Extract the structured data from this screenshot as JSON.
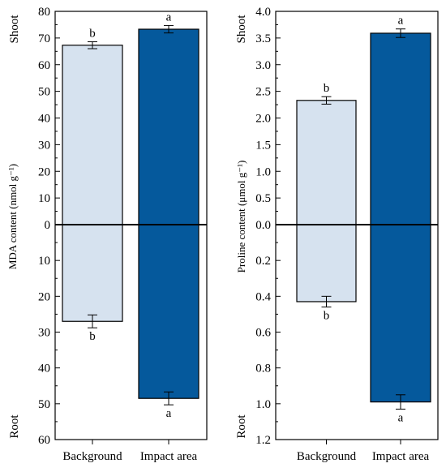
{
  "chart_data": [
    {
      "type": "bar",
      "ylabel": "MDA content (nmol g⁻¹)",
      "side_labels": {
        "top": "Shoot",
        "bottom": "Root"
      },
      "categories": [
        "Background",
        "Impact area"
      ],
      "colors": [
        "#d6e2ef",
        "#05599c"
      ],
      "ylim_shoot": [
        0,
        80
      ],
      "ylim_root": [
        0,
        60
      ],
      "yticks_shoot": [
        "0",
        "10",
        "20",
        "30",
        "40",
        "50",
        "60",
        "70",
        "80"
      ],
      "yticks_root": [
        "10",
        "20",
        "30",
        "40",
        "50",
        "60"
      ],
      "series": [
        {
          "part": "shoot",
          "values": [
            67.3,
            73.3
          ],
          "errors": [
            1.3,
            1.4
          ],
          "letters": [
            "b",
            "a"
          ]
        },
        {
          "part": "root",
          "values": [
            27.0,
            48.5
          ],
          "errors": [
            1.8,
            1.8
          ],
          "letters": [
            "b",
            "a"
          ]
        }
      ]
    },
    {
      "type": "bar",
      "ylabel": "Proline content (μmol g⁻¹)",
      "side_labels": {
        "top": "Shoot",
        "bottom": "Root"
      },
      "categories": [
        "Background",
        "Impact area"
      ],
      "colors": [
        "#d6e2ef",
        "#05599c"
      ],
      "ylim_shoot": [
        0,
        4.0
      ],
      "ylim_root": [
        0,
        1.2
      ],
      "yticks_shoot": [
        "0.0",
        "0.5",
        "1.0",
        "1.5",
        "2.0",
        "2.5",
        "3.0",
        "3.5",
        "4.0"
      ],
      "yticks_root": [
        "0.2",
        "0.4",
        "0.6",
        "0.8",
        "1.0",
        "1.2"
      ],
      "series": [
        {
          "part": "shoot",
          "values": [
            2.33,
            3.59
          ],
          "errors": [
            0.07,
            0.08
          ],
          "letters": [
            "b",
            "a"
          ]
        },
        {
          "part": "root",
          "values": [
            0.43,
            0.99
          ],
          "errors": [
            0.03,
            0.04
          ],
          "letters": [
            "b",
            "a"
          ]
        }
      ]
    }
  ]
}
